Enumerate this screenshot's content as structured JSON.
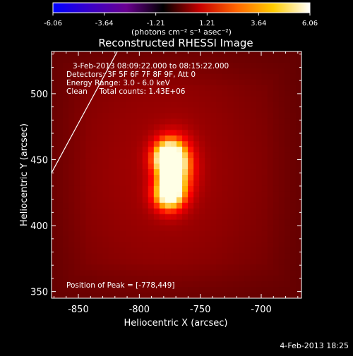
{
  "colorbar": {
    "ticks": [
      "-6.06",
      "-3.64",
      "-1.21",
      "1.21",
      "3.64",
      "6.06"
    ],
    "unit_label": "(photons cm⁻² s⁻¹ asec⁻²)",
    "range": [
      -6.06,
      6.06
    ],
    "colormap": [
      "#0000ff",
      "#3a00c8",
      "#6a0090",
      "#000000",
      "#c80000",
      "#ff6600",
      "#ffcc00",
      "#ffffff"
    ]
  },
  "chart_data": {
    "type": "heatmap",
    "title": "Reconstructed RHESSI Image",
    "xlabel": "Heliocentric X (arcsec)",
    "ylabel": "Heliocentric Y (arcsec)",
    "xlim": [
      -872,
      -667
    ],
    "ylim": [
      345,
      532
    ],
    "x_ticks": [
      -850,
      -800,
      -750,
      -700
    ],
    "y_ticks": [
      350,
      400,
      450,
      500
    ],
    "x_tick_labels": [
      "-850",
      "-800",
      "-750",
      "-700"
    ],
    "y_tick_labels": [
      "350",
      "400",
      "450",
      "500"
    ],
    "background_color": "#ff0000",
    "peak": {
      "x": -778,
      "y": 449
    },
    "sources": [
      {
        "x": -777,
        "y": 451,
        "sigma_x": 9,
        "sigma_y": 10,
        "amp": 1.0
      },
      {
        "x": -776,
        "y": 424,
        "sigma_x": 9,
        "sigma_y": 9,
        "amp": 0.95
      },
      {
        "x": -768,
        "y": 444,
        "sigma_x": 10,
        "sigma_y": 15,
        "amp": 0.55
      }
    ],
    "limb_line": [
      {
        "x": -872,
        "y": 440
      },
      {
        "x": -818,
        "y": 532
      }
    ],
    "annotations": [
      "3-Feb-2013 08:09:22.000 to 08:15:22.000",
      "Detectors: 3F 5F 6F 7F 8F 9F, Att 0",
      "Energy Range: 3.0 - 6.0 keV",
      "Clean     Total counts: 1.43E+06"
    ],
    "peak_label": "Position of Peak = [-778,449]"
  },
  "footer": {
    "date": "4-Feb-2013 18:25"
  }
}
